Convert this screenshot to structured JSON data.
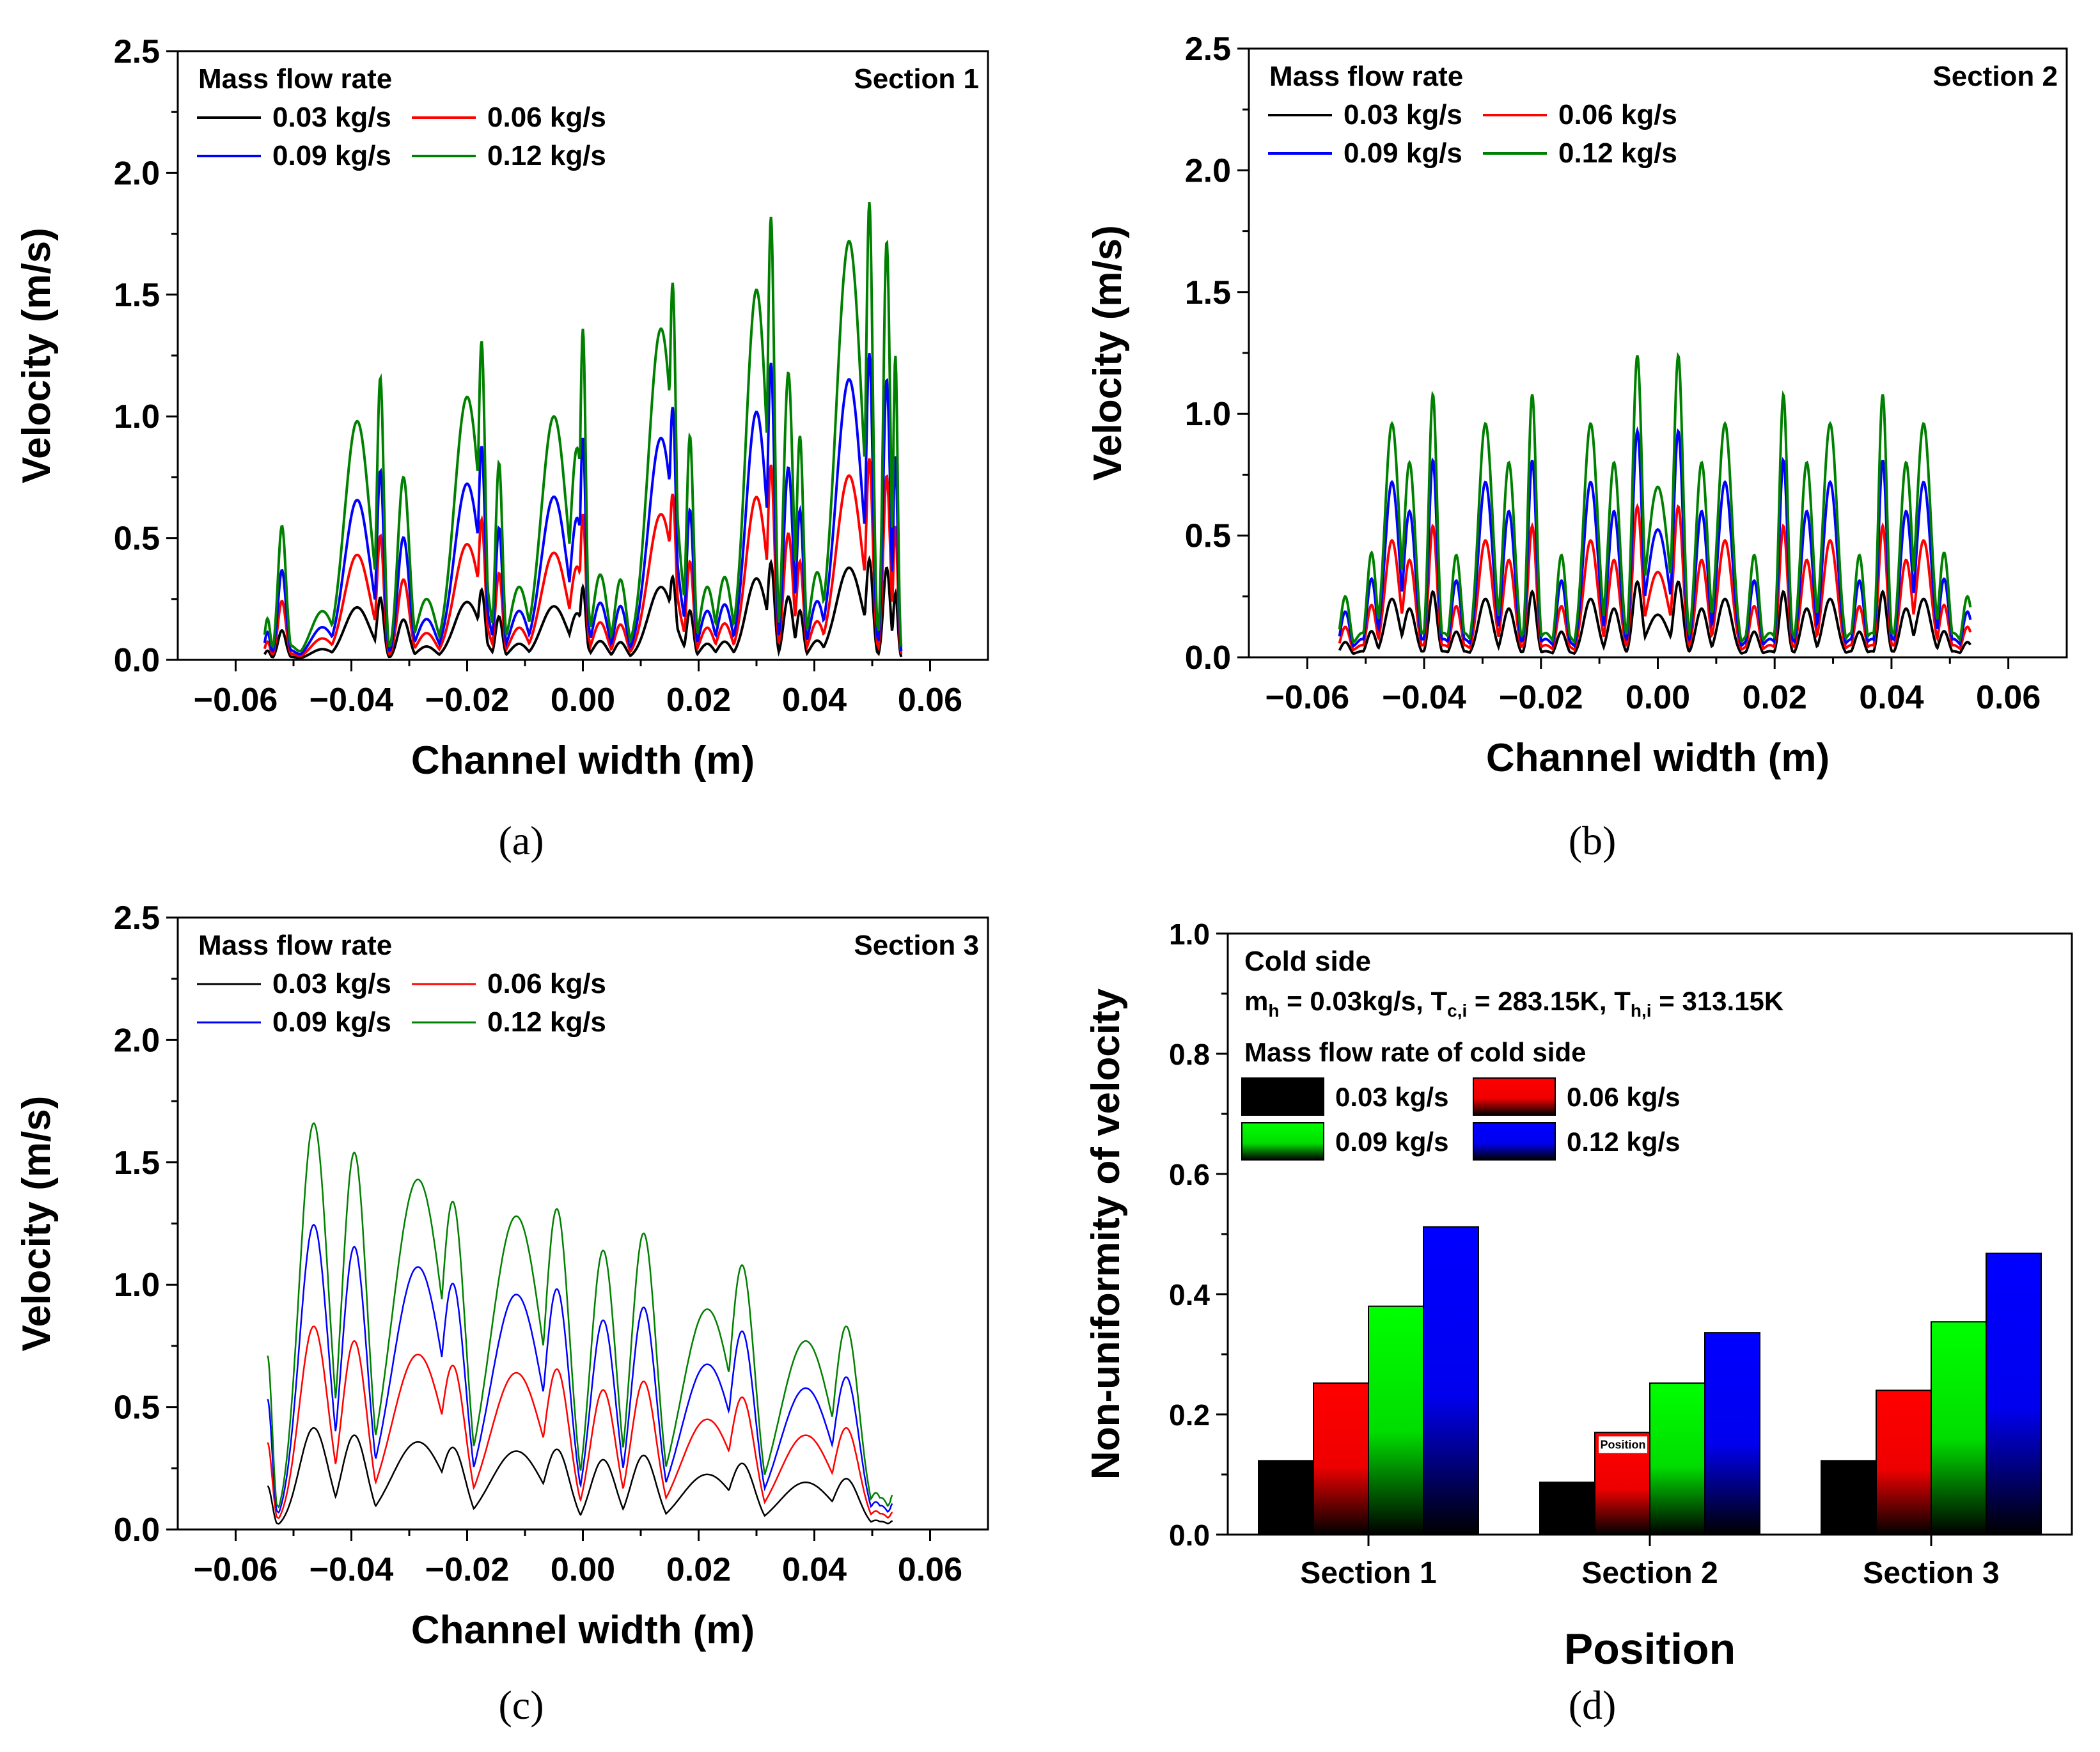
{
  "chart_data": [
    {
      "panel": "a",
      "type": "line",
      "caption": "(a)",
      "corner_label": "Section 1",
      "xlabel": "Channel width (m)",
      "ylabel": "Velocity (m/s)",
      "xlim": [
        -0.07,
        0.07
      ],
      "ylim": [
        0,
        2.5
      ],
      "xticks": [
        -0.06,
        -0.04,
        -0.02,
        0.0,
        0.02,
        0.04,
        0.06
      ],
      "yticks": [
        0.0,
        0.5,
        1.0,
        1.5,
        2.0,
        2.5
      ],
      "xtick_labels": [
        "−0.06",
        "−0.04",
        "−0.02",
        "0.00",
        "0.02",
        "0.04",
        "0.06"
      ],
      "ytick_labels": [
        "0.0",
        "0.5",
        "1.0",
        "1.5",
        "2.0",
        "2.5"
      ],
      "legend_title": "Mass flow rate",
      "series": [
        {
          "name": "0.03 kg/s",
          "color": "#000000",
          "scale": 0.22
        },
        {
          "name": "0.06 kg/s",
          "color": "#ff0000",
          "scale": 0.44
        },
        {
          "name": "0.09 kg/s",
          "color": "#0000ff",
          "scale": 0.67
        },
        {
          "name": "0.12 kg/s",
          "color": "#008000",
          "scale": 1.0
        }
      ],
      "peaks": [
        {
          "x": -0.0545,
          "h": 0.17,
          "w": 0.0005
        },
        {
          "x": -0.052,
          "h": 0.55,
          "w": 0.0007
        },
        {
          "x": -0.045,
          "h": 0.2,
          "w": 0.002
        },
        {
          "x": -0.039,
          "h": 0.98,
          "w": 0.0022
        },
        {
          "x": -0.035,
          "h": 1.16,
          "w": 0.0006
        },
        {
          "x": -0.031,
          "h": 0.75,
          "w": 0.001
        },
        {
          "x": -0.027,
          "h": 0.25,
          "w": 0.0016
        },
        {
          "x": -0.02,
          "h": 1.08,
          "w": 0.0022
        },
        {
          "x": -0.0175,
          "h": 1.31,
          "w": 0.0006
        },
        {
          "x": -0.0145,
          "h": 0.81,
          "w": 0.0006
        },
        {
          "x": -0.011,
          "h": 0.3,
          "w": 0.0015
        },
        {
          "x": -0.005,
          "h": 1.0,
          "w": 0.0022
        },
        {
          "x": -0.001,
          "h": 0.87,
          "w": 0.0012
        },
        {
          "x": 0.0,
          "h": 1.36,
          "w": 0.0005
        },
        {
          "x": 0.003,
          "h": 0.35,
          "w": 0.0012
        },
        {
          "x": 0.0065,
          "h": 0.33,
          "w": 0.001
        },
        {
          "x": 0.0135,
          "h": 1.36,
          "w": 0.0022
        },
        {
          "x": 0.0155,
          "h": 1.55,
          "w": 0.0006
        },
        {
          "x": 0.0185,
          "h": 0.92,
          "w": 0.0006
        },
        {
          "x": 0.0215,
          "h": 0.3,
          "w": 0.0012
        },
        {
          "x": 0.0245,
          "h": 0.34,
          "w": 0.0012
        },
        {
          "x": 0.03,
          "h": 1.52,
          "w": 0.0018
        },
        {
          "x": 0.0325,
          "h": 1.82,
          "w": 0.0006
        },
        {
          "x": 0.0355,
          "h": 1.18,
          "w": 0.0008
        },
        {
          "x": 0.0375,
          "h": 0.92,
          "w": 0.0006
        },
        {
          "x": 0.0405,
          "h": 0.36,
          "w": 0.0012
        },
        {
          "x": 0.046,
          "h": 1.72,
          "w": 0.0022
        },
        {
          "x": 0.0495,
          "h": 1.88,
          "w": 0.0006
        },
        {
          "x": 0.0525,
          "h": 1.72,
          "w": 0.0006
        },
        {
          "x": 0.054,
          "h": 1.25,
          "w": 0.0004
        }
      ],
      "baseline": 0.06,
      "x_start": -0.055,
      "x_end": 0.055
    },
    {
      "panel": "b",
      "type": "line",
      "caption": "(b)",
      "corner_label": "Section 2",
      "xlabel": "Channel width (m)",
      "ylabel": "Velocity (m/s)",
      "xlim": [
        -0.07,
        0.07
      ],
      "ylim": [
        0,
        2.5
      ],
      "xticks": [
        -0.06,
        -0.04,
        -0.02,
        0.0,
        0.02,
        0.04,
        0.06
      ],
      "yticks": [
        0.0,
        0.5,
        1.0,
        1.5,
        2.0,
        2.5
      ],
      "xtick_labels": [
        "−0.06",
        "−0.04",
        "−0.02",
        "0.00",
        "0.02",
        "0.04",
        "0.06"
      ],
      "ytick_labels": [
        "0.0",
        "0.5",
        "1.0",
        "1.5",
        "2.0",
        "2.5"
      ],
      "legend_title": "Mass flow rate",
      "series": [
        {
          "name": "0.03 kg/s",
          "color": "#000000",
          "scale": 0.25
        },
        {
          "name": "0.06 kg/s",
          "color": "#ff0000",
          "scale": 0.5
        },
        {
          "name": "0.09 kg/s",
          "color": "#0000ff",
          "scale": 0.75
        },
        {
          "name": "0.12 kg/s",
          "color": "#008000",
          "scale": 1.0
        }
      ],
      "peaks": [
        {
          "x": -0.0535,
          "h": 0.25,
          "w": 0.0008
        },
        {
          "x": -0.049,
          "h": 0.43,
          "w": 0.0008
        },
        {
          "x": -0.0455,
          "h": 0.96,
          "w": 0.0012
        },
        {
          "x": -0.0425,
          "h": 0.8,
          "w": 0.001
        },
        {
          "x": -0.0385,
          "h": 1.08,
          "w": 0.0007
        },
        {
          "x": -0.0345,
          "h": 0.42,
          "w": 0.0008
        },
        {
          "x": -0.0295,
          "h": 0.96,
          "w": 0.0012
        },
        {
          "x": -0.0255,
          "h": 0.8,
          "w": 0.001
        },
        {
          "x": -0.0215,
          "h": 1.08,
          "w": 0.0007
        },
        {
          "x": -0.0165,
          "h": 0.42,
          "w": 0.0008
        },
        {
          "x": -0.0115,
          "h": 0.96,
          "w": 0.0012
        },
        {
          "x": -0.0075,
          "h": 0.8,
          "w": 0.001
        },
        {
          "x": -0.0035,
          "h": 1.24,
          "w": 0.0008
        },
        {
          "x": 0.0,
          "h": 0.7,
          "w": 0.0018
        },
        {
          "x": 0.0035,
          "h": 1.24,
          "w": 0.0008
        },
        {
          "x": 0.0075,
          "h": 0.8,
          "w": 0.001
        },
        {
          "x": 0.0115,
          "h": 0.96,
          "w": 0.0012
        },
        {
          "x": 0.0165,
          "h": 0.42,
          "w": 0.0008
        },
        {
          "x": 0.0215,
          "h": 1.08,
          "w": 0.0007
        },
        {
          "x": 0.0255,
          "h": 0.8,
          "w": 0.001
        },
        {
          "x": 0.0295,
          "h": 0.96,
          "w": 0.0012
        },
        {
          "x": 0.0345,
          "h": 0.42,
          "w": 0.0008
        },
        {
          "x": 0.0385,
          "h": 1.08,
          "w": 0.0007
        },
        {
          "x": 0.0425,
          "h": 0.8,
          "w": 0.001
        },
        {
          "x": 0.0455,
          "h": 0.96,
          "w": 0.0012
        },
        {
          "x": 0.049,
          "h": 0.43,
          "w": 0.0008
        },
        {
          "x": 0.053,
          "h": 0.25,
          "w": 0.0008
        }
      ],
      "baseline": 0.1,
      "x_start": -0.0545,
      "x_end": 0.0535
    },
    {
      "panel": "c",
      "type": "line",
      "caption": "(c)",
      "corner_label": "Section 3",
      "xlabel": "Channel width (m)",
      "ylabel": "Velocity (m/s)",
      "xlim": [
        -0.07,
        0.07
      ],
      "ylim": [
        0,
        2.5
      ],
      "xticks": [
        -0.06,
        -0.04,
        -0.02,
        0.0,
        0.02,
        0.04,
        0.06
      ],
      "yticks": [
        0.0,
        0.5,
        1.0,
        1.5,
        2.0,
        2.5
      ],
      "xtick_labels": [
        "−0.06",
        "−0.04",
        "−0.02",
        "0.00",
        "0.02",
        "0.04",
        "0.06"
      ],
      "ytick_labels": [
        "0.0",
        "0.5",
        "1.0",
        "1.5",
        "2.0",
        "2.5"
      ],
      "legend_title": "Mass flow rate",
      "series": [
        {
          "name": "0.03 kg/s",
          "color": "#000000",
          "scale": 0.25
        },
        {
          "name": "0.06 kg/s",
          "color": "#ff0000",
          "scale": 0.5
        },
        {
          "name": "0.09 kg/s",
          "color": "#0000ff",
          "scale": 0.75
        },
        {
          "name": "0.12 kg/s",
          "color": "#008000",
          "scale": 1.0
        }
      ],
      "peaks": [
        {
          "x": -0.0545,
          "h": 0.71,
          "w": 0.0008
        },
        {
          "x": -0.0465,
          "h": 1.66,
          "w": 0.0025
        },
        {
          "x": -0.0415,
          "h": 0.2,
          "w": 0.0006
        },
        {
          "x": -0.0395,
          "h": 1.54,
          "w": 0.0022
        },
        {
          "x": -0.0285,
          "h": 1.43,
          "w": 0.0045
        },
        {
          "x": -0.0255,
          "h": 0.28,
          "w": 0.0006
        },
        {
          "x": -0.0225,
          "h": 1.34,
          "w": 0.0022
        },
        {
          "x": -0.0115,
          "h": 1.28,
          "w": 0.0045
        },
        {
          "x": -0.008,
          "h": 0.22,
          "w": 0.0006
        },
        {
          "x": -0.0045,
          "h": 1.31,
          "w": 0.0022
        },
        {
          "x": 0.0035,
          "h": 1.14,
          "w": 0.0022
        },
        {
          "x": 0.0065,
          "h": 0.22,
          "w": 0.0006
        },
        {
          "x": 0.0105,
          "h": 1.21,
          "w": 0.0022
        },
        {
          "x": 0.0215,
          "h": 0.9,
          "w": 0.0045
        },
        {
          "x": 0.0245,
          "h": 0.2,
          "w": 0.0006
        },
        {
          "x": 0.0275,
          "h": 1.08,
          "w": 0.0022
        },
        {
          "x": 0.0385,
          "h": 0.77,
          "w": 0.0045
        },
        {
          "x": 0.0425,
          "h": 0.18,
          "w": 0.0006
        },
        {
          "x": 0.0455,
          "h": 0.83,
          "w": 0.0022
        },
        {
          "x": 0.0515,
          "h": 0.13,
          "w": 0.0015
        },
        {
          "x": 0.0535,
          "h": 0.14,
          "w": 0.0006
        }
      ],
      "baseline": 0.15,
      "x_start": -0.0545,
      "x_end": 0.0535
    },
    {
      "panel": "d",
      "type": "bar",
      "caption": "(d)",
      "xlabel": "Position",
      "ylabel": "Non-uniformity of velocity",
      "ylim": [
        0,
        1.0
      ],
      "yticks": [
        0.0,
        0.2,
        0.4,
        0.6,
        0.8,
        1.0
      ],
      "ytick_labels": [
        "0.0",
        "0.2",
        "0.4",
        "0.6",
        "0.8",
        "1.0"
      ],
      "categories": [
        "Section 1",
        "Section 2",
        "Section 3"
      ],
      "annotation_title": "Cold side",
      "annotation_conditions": {
        "m_base": "m",
        "m_sub": "h",
        "m_text": " = 0.03kg/s, T",
        "tc_sub": "c,i",
        "tc_text": " = 283.15K, T",
        "th_sub": "h,i",
        "th_text": " = 313.15K"
      },
      "legend_title": "Mass flow rate of cold side",
      "stray_label": "Position",
      "series": [
        {
          "name": "0.03 kg/s",
          "color": "#000000",
          "values": [
            0.123,
            0.087,
            0.123
          ]
        },
        {
          "name": "0.06 kg/s",
          "color": "#ff0000",
          "values": [
            0.252,
            0.17,
            0.24
          ]
        },
        {
          "name": "0.09 kg/s",
          "color": "#00ee00",
          "values": [
            0.38,
            0.252,
            0.354
          ]
        },
        {
          "name": "0.12 kg/s",
          "color": "#0000ff",
          "values": [
            0.512,
            0.336,
            0.468
          ]
        }
      ]
    }
  ]
}
